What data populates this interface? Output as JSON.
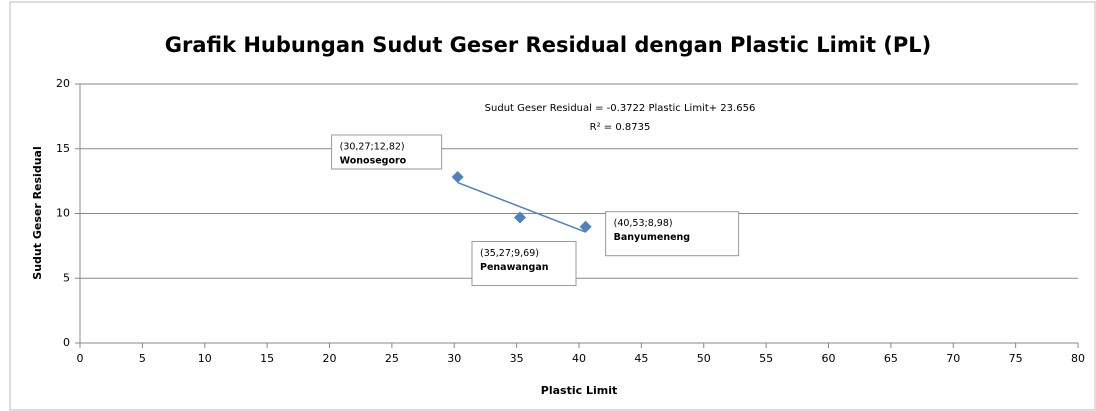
{
  "chart_data": {
    "type": "scatter",
    "title": "Grafik Hubungan Sudut Geser Residual dengan Plastic Limit (PL)",
    "xlabel": "Plastic Limit",
    "ylabel": "Sudut Geser  Residual",
    "series": [
      {
        "name": "Sudut Geser Residual",
        "color": "#4f81bd",
        "x": [
          30.27,
          35.27,
          40.53
        ],
        "values": [
          12.82,
          9.69,
          8.98
        ],
        "value_labels": [
          "(30,27;12,82)",
          "(35,27;9,69)",
          "(40,53;8,98)"
        ],
        "point_labels": [
          "Wonosegoro",
          "Penawangan",
          "Banyumeneng"
        ]
      }
    ],
    "trendline": {
      "color": "#4f81bd",
      "x": [
        30.27,
        40.53
      ],
      "values": [
        12.39,
        8.57
      ],
      "equation": "Sudut Geser Residual = -0.3722 Plastic Limit+ 23.656",
      "r2": "R² = 0.8735"
    },
    "xlim": [
      0,
      80
    ],
    "xticks": [
      0,
      5,
      10,
      15,
      20,
      25,
      30,
      35,
      40,
      45,
      50,
      55,
      60,
      65,
      70,
      75,
      80
    ],
    "ylim": [
      0,
      20
    ],
    "yticks": [
      0,
      5,
      10,
      15,
      20
    ],
    "grid": true
  }
}
